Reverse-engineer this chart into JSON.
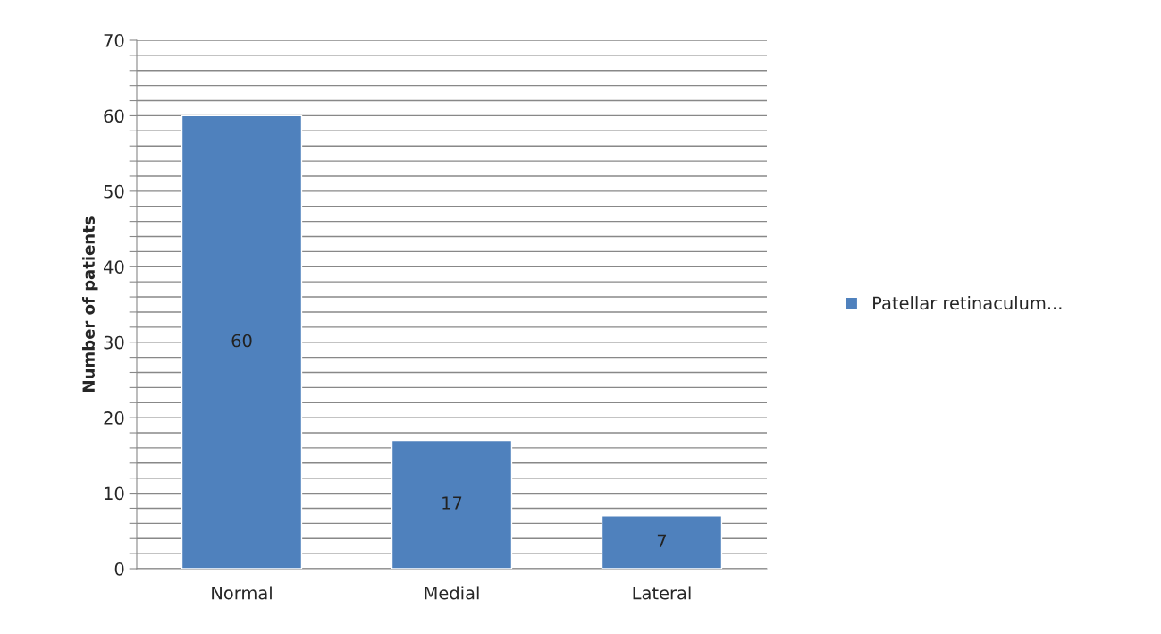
{
  "chart_data": {
    "type": "bar",
    "ylabel": "Number of patients",
    "categories": [
      "Normal",
      "Medial",
      "Lateral"
    ],
    "series": [
      {
        "name": "Patellar retinaculum...",
        "color": "#4f81bd",
        "values": [
          60,
          17,
          7
        ]
      }
    ],
    "ylim": [
      0,
      70
    ],
    "yticks": [
      0,
      {
        "value": 2,
        "label": null
      },
      {
        "value": 4,
        "label": null
      },
      {
        "value": 6,
        "label": null
      },
      {
        "value": 8,
        "label": null
      },
      10,
      {
        "value": 12,
        "label": null
      },
      {
        "value": 14,
        "label": null
      },
      {
        "value": 16,
        "label": null
      },
      {
        "value": 18,
        "label": null
      },
      20,
      {
        "value": 22,
        "label": null
      },
      {
        "value": 24,
        "label": null
      },
      {
        "value": 26,
        "label": null
      },
      {
        "value": 28,
        "label": null
      },
      30,
      {
        "value": 32,
        "label": null
      },
      {
        "value": 34,
        "label": null
      },
      {
        "value": 36,
        "label": null
      },
      {
        "value": 38,
        "label": null
      },
      40,
      {
        "value": 42,
        "label": null
      },
      {
        "value": 44,
        "label": null
      },
      {
        "value": 46,
        "label": null
      },
      {
        "value": 48,
        "label": null
      },
      50,
      {
        "value": 52,
        "label": null
      },
      {
        "value": 54,
        "label": null
      },
      {
        "value": 56,
        "label": null
      },
      {
        "value": 58,
        "label": null
      },
      60,
      {
        "value": 62,
        "label": null
      },
      {
        "value": 64,
        "label": null
      },
      {
        "value": 66,
        "label": null
      },
      {
        "value": 68,
        "label": null
      },
      70
    ],
    "grid": "y",
    "legend": "right",
    "data_labels": true
  }
}
